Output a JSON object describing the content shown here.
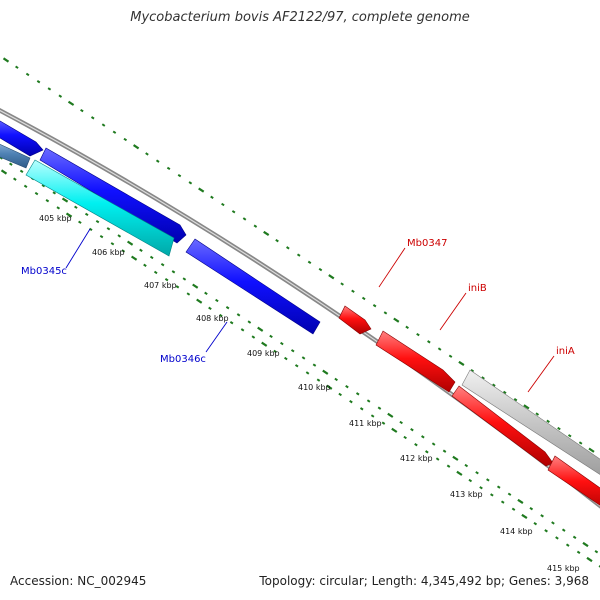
{
  "title": "Mycobacterium bovis AF2122/97, complete genome",
  "accession": "Accession: NC_002945",
  "summary": "Topology: circular; Length: 4,345,492 bp; Genes: 3,968",
  "colors": {
    "background": "#ffffff",
    "backbone": "#888888",
    "tick_marks": "#1f7a1f",
    "forward_strand_gene": "#ff0000",
    "reverse_strand_gene": "#0000ff",
    "cyan_gene": "#00e5e5",
    "grey_gene": "#c8c8c8",
    "steelblue_gene": "#4f82b4",
    "reverse_label": "#0000cc",
    "forward_label": "#cc0000"
  },
  "tick_labels": [
    {
      "label": "405 kbp"
    },
    {
      "label": "406 kbp"
    },
    {
      "label": "407 kbp"
    },
    {
      "label": "408 kbp"
    },
    {
      "label": "409 kbp"
    },
    {
      "label": "410 kbp"
    },
    {
      "label": "411 kbp"
    },
    {
      "label": "412 kbp"
    },
    {
      "label": "413 kbp"
    },
    {
      "label": "414 kbp"
    },
    {
      "label": "415 kbp"
    }
  ],
  "gene_labels": [
    {
      "label": "Mb0345c",
      "strand": "reverse"
    },
    {
      "label": "Mb0346c",
      "strand": "reverse"
    },
    {
      "label": "Mb0347",
      "strand": "forward"
    },
    {
      "label": "iniB",
      "strand": "forward"
    },
    {
      "label": "iniA",
      "strand": "forward"
    }
  ]
}
